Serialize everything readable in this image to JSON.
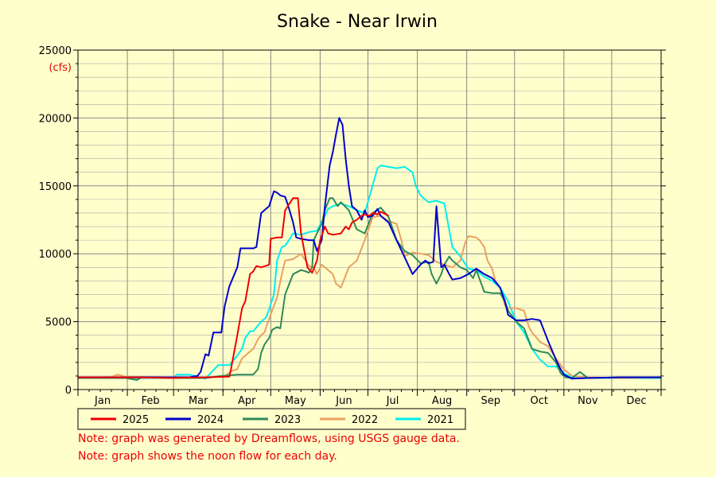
{
  "chart_data": {
    "type": "line",
    "title": "Snake - Near Irwin",
    "y_unit": "(cfs)",
    "ylim": [
      0,
      25000
    ],
    "y_ticks": [
      0,
      5000,
      10000,
      15000,
      20000,
      25000
    ],
    "x_unit": "day of year",
    "xlim": [
      0,
      366
    ],
    "months": [
      "Jan",
      "Feb",
      "Mar",
      "Apr",
      "May",
      "Jun",
      "Jul",
      "Aug",
      "Sep",
      "Oct",
      "Nov",
      "Dec"
    ],
    "month_starts": [
      0,
      31,
      60,
      91,
      121,
      152,
      182,
      213,
      244,
      274,
      305,
      335,
      366
    ],
    "grid": true,
    "legend_position": "bottom",
    "series": [
      {
        "name": "2025",
        "color": "#ee0000",
        "x": [
          0,
          30,
          60,
          80,
          95,
          96,
          100,
          103,
          105,
          108,
          110,
          112,
          115,
          120,
          121,
          125,
          128,
          130,
          135,
          138,
          140,
          144,
          147,
          150,
          152,
          155,
          157,
          160,
          165,
          168,
          170,
          172,
          175,
          178,
          180,
          183,
          185,
          188,
          190,
          195
        ],
        "y": [
          900,
          900,
          850,
          900,
          950,
          1500,
          4000,
          6000,
          6500,
          8500,
          8700,
          9100,
          9000,
          9200,
          11100,
          11200,
          11200,
          13200,
          14100,
          14100,
          11500,
          9000,
          8600,
          9500,
          11000,
          12000,
          11500,
          11400,
          11500,
          12000,
          11800,
          12300,
          12500,
          12800,
          12900,
          12800,
          13000,
          12900,
          13100,
          12800
        ]
      },
      {
        "name": "2024",
        "color": "#0000cc",
        "x": [
          0,
          40,
          70,
          72,
          75,
          77,
          80,
          82,
          85,
          90,
          92,
          95,
          100,
          102,
          105,
          110,
          112,
          115,
          118,
          120,
          123,
          125,
          127,
          130,
          132,
          135,
          137,
          140,
          145,
          148,
          150,
          153,
          155,
          158,
          160,
          162,
          164,
          166,
          168,
          170,
          172,
          175,
          178,
          180,
          182,
          185,
          188,
          190,
          195,
          200,
          210,
          215,
          218,
          220,
          223,
          225,
          228,
          230,
          233,
          235,
          240,
          245,
          250,
          255,
          260,
          263,
          265,
          268,
          270,
          275,
          280,
          285,
          290,
          295,
          300,
          303,
          305,
          310,
          320,
          340,
          366
        ],
        "y": [
          900,
          900,
          900,
          950,
          1000,
          1300,
          2600,
          2500,
          4200,
          4200,
          6100,
          7600,
          9000,
          10400,
          10400,
          10400,
          10500,
          13000,
          13300,
          13500,
          14600,
          14500,
          14300,
          14200,
          13500,
          12300,
          11200,
          11100,
          11000,
          11000,
          10200,
          11000,
          13500,
          16500,
          17500,
          18800,
          20000,
          19500,
          17000,
          15000,
          13500,
          13200,
          12500,
          13200,
          12700,
          12800,
          13300,
          12800,
          12300,
          11000,
          8500,
          9200,
          9500,
          9300,
          9400,
          13500,
          9000,
          9200,
          8500,
          8100,
          8200,
          8500,
          8900,
          8500,
          8200,
          7800,
          7500,
          6500,
          5500,
          5100,
          5100,
          5200,
          5100,
          3600,
          2200,
          1500,
          1100,
          800,
          850,
          900,
          900
        ]
      },
      {
        "name": "2023",
        "color": "#2e8b57",
        "x": [
          0,
          30,
          37,
          40,
          50,
          60,
          80,
          90,
          100,
          110,
          113,
          115,
          117,
          120,
          122,
          125,
          127,
          130,
          135,
          140,
          143,
          145,
          147,
          148,
          150,
          153,
          155,
          158,
          160,
          163,
          165,
          170,
          175,
          180,
          185,
          190,
          195,
          200,
          205,
          210,
          215,
          220,
          222,
          225,
          228,
          230,
          233,
          235,
          240,
          244,
          248,
          250,
          255,
          260,
          265,
          268,
          270,
          275,
          280,
          285,
          290,
          295,
          300,
          303,
          306,
          310,
          315,
          320,
          340,
          366
        ],
        "y": [
          850,
          850,
          700,
          900,
          900,
          850,
          850,
          1000,
          1100,
          1100,
          1500,
          2700,
          3300,
          3800,
          4400,
          4600,
          4500,
          7000,
          8500,
          8800,
          8700,
          8600,
          9000,
          11000,
          11500,
          12200,
          13200,
          14100,
          14100,
          13500,
          13800,
          13200,
          11800,
          11500,
          13000,
          13400,
          12700,
          11000,
          10200,
          9900,
          9300,
          9400,
          8500,
          7800,
          8500,
          9200,
          9800,
          9500,
          9000,
          8800,
          8200,
          8800,
          7200,
          7100,
          7100,
          6500,
          5800,
          5000,
          4500,
          3000,
          2800,
          2700,
          2000,
          1200,
          900,
          850,
          1300,
          850,
          900,
          900
        ]
      },
      {
        "name": "2022",
        "color": "#e9a060",
        "x": [
          0,
          20,
          25,
          30,
          60,
          80,
          92,
          97,
          100,
          103,
          105,
          110,
          113,
          115,
          117,
          120,
          125,
          128,
          130,
          135,
          140,
          145,
          148,
          150,
          153,
          155,
          160,
          162,
          165,
          170,
          175,
          180,
          185,
          190,
          195,
          200,
          203,
          205,
          210,
          215,
          220,
          225,
          230,
          235,
          240,
          243,
          245,
          250,
          252,
          255,
          257,
          260,
          262,
          265,
          268,
          270,
          275,
          280,
          283,
          285,
          288,
          290,
          295,
          300,
          305,
          310,
          320,
          340,
          366
        ],
        "y": [
          900,
          900,
          1100,
          950,
          900,
          850,
          1000,
          1400,
          1500,
          2300,
          2500,
          3000,
          3700,
          4000,
          4200,
          5200,
          6800,
          8500,
          9500,
          9600,
          10000,
          9100,
          9000,
          8500,
          9200,
          9000,
          8500,
          7800,
          7500,
          9000,
          9500,
          11000,
          12700,
          12800,
          12400,
          12200,
          11000,
          9800,
          10100,
          10000,
          9900,
          9400,
          9200,
          9000,
          9500,
          10800,
          11300,
          11200,
          11000,
          10500,
          9500,
          8900,
          8000,
          7500,
          6200,
          6000,
          6000,
          5800,
          4600,
          4200,
          3800,
          3500,
          3200,
          2300,
          1500,
          1000,
          900,
          850,
          900
        ]
      },
      {
        "name": "2021",
        "color": "#00eeee",
        "x": [
          0,
          30,
          60,
          62,
          70,
          80,
          88,
          92,
          95,
          100,
          103,
          105,
          108,
          110,
          115,
          118,
          120,
          123,
          125,
          128,
          130,
          133,
          135,
          140,
          145,
          150,
          155,
          157,
          160,
          165,
          170,
          175,
          180,
          188,
          190,
          195,
          200,
          205,
          210,
          212,
          215,
          220,
          225,
          230,
          235,
          240,
          245,
          250,
          255,
          260,
          265,
          270,
          275,
          280,
          285,
          290,
          295,
          300,
          305,
          310,
          320,
          340,
          366
        ],
        "y": [
          850,
          850,
          850,
          1100,
          1100,
          800,
          1800,
          1800,
          1800,
          2500,
          3000,
          3800,
          4300,
          4300,
          5000,
          5300,
          5900,
          7000,
          9500,
          10500,
          10600,
          11100,
          11500,
          11400,
          11600,
          11700,
          12800,
          13300,
          13500,
          13700,
          13500,
          13200,
          13000,
          16300,
          16500,
          16400,
          16300,
          16400,
          16000,
          15000,
          14300,
          13800,
          13900,
          13700,
          10500,
          9800,
          8900,
          8800,
          8300,
          8000,
          7500,
          6500,
          5000,
          4200,
          3000,
          2200,
          1700,
          1700,
          1200,
          900,
          850,
          850,
          850
        ]
      }
    ],
    "legend": [
      "2025",
      "2024",
      "2023",
      "2022",
      "2021"
    ]
  },
  "notes": [
    "Note: graph was generated by Dreamflows, using USGS gauge data.",
    "Note: graph shows the noon flow for each day."
  ],
  "colors": {
    "background": "#ffffcc",
    "note_text": "#ee0000",
    "unit_text": "#ee0000"
  }
}
